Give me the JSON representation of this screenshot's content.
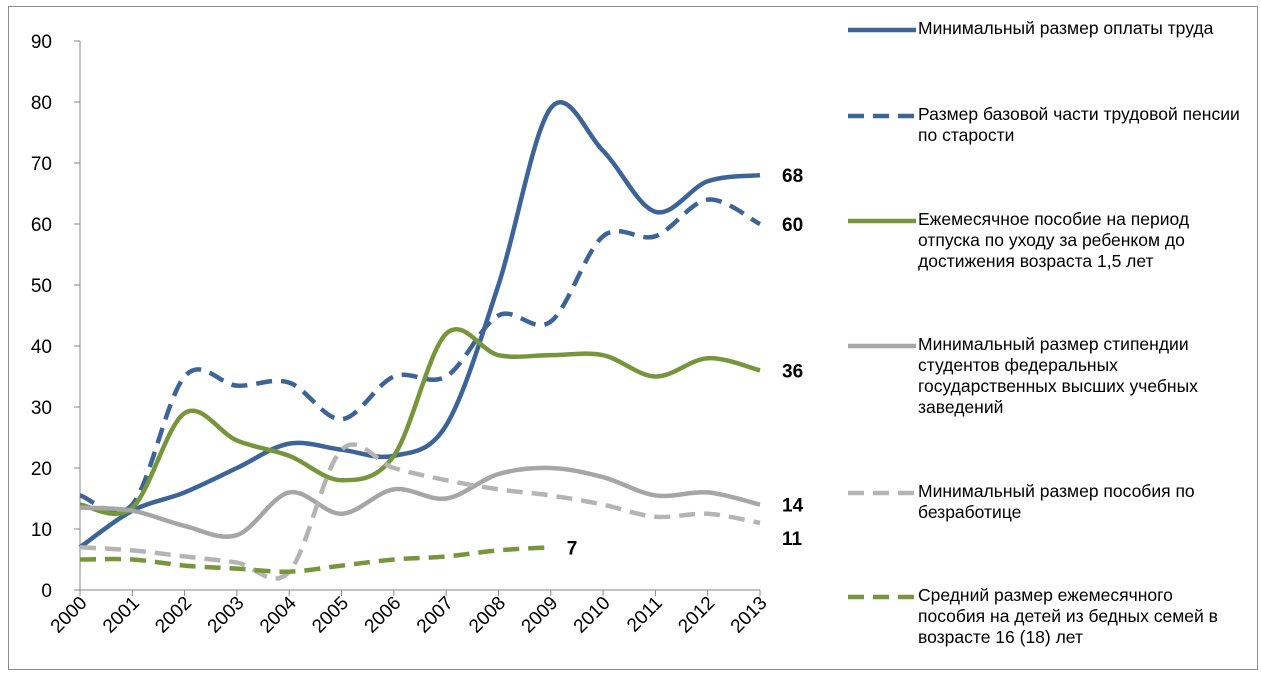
{
  "chart_data": {
    "type": "line",
    "categories": [
      "2000",
      "2001",
      "2002",
      "2003",
      "2004",
      "2005",
      "2006",
      "2007",
      "2008",
      "2009",
      "2010",
      "2011",
      "2012",
      "2013"
    ],
    "ylim": [
      0,
      90
    ],
    "yticks": [
      0,
      10,
      20,
      30,
      40,
      50,
      60,
      70,
      80,
      90
    ],
    "grid": false,
    "legend": "right",
    "smooth": true,
    "series": [
      {
        "name": "Минимальный размер оплаты труда",
        "color": "#3c6497",
        "dashed": false,
        "values": [
          7,
          13,
          16,
          20,
          24,
          23,
          22,
          27,
          50,
          79,
          72,
          62,
          67,
          68
        ]
      },
      {
        "name": "Размер базовой части трудовой пенсии по старости",
        "color": "#3c6497",
        "dashed": true,
        "values": [
          15.5,
          14,
          35,
          33.5,
          34,
          28,
          35,
          35,
          45,
          44,
          58,
          58,
          64,
          60
        ]
      },
      {
        "name": "Ежемесячное пособие на период отпуска по уходу за ребенком до достижения возраста 1,5 лет",
        "color": "#77963c",
        "dashed": false,
        "values": [
          14,
          13.5,
          29,
          24.5,
          22,
          18,
          22,
          42,
          38.5,
          38.5,
          38.5,
          35,
          38,
          36
        ]
      },
      {
        "name": "Минимальный размер стипендии студентов федеральных государственных высших учебных заведений",
        "color": "#a6a6a6",
        "dashed": false,
        "values": [
          13.5,
          13,
          10.5,
          9,
          16,
          12.5,
          16.5,
          15,
          19,
          20,
          18.5,
          15.5,
          16,
          14
        ]
      },
      {
        "name": "Минимальный размер пособия по безработице",
        "color": "#b4b4b4",
        "dashed": true,
        "values": [
          7,
          6.5,
          5.5,
          4.5,
          3,
          23,
          20,
          18,
          16.5,
          15.5,
          14,
          12,
          12.5,
          11
        ]
      },
      {
        "name": "Средний размер ежемесячного пособия на детей из бедных семей в возрасте 16 (18) лет",
        "color": "#77963c",
        "dashed": true,
        "values": [
          5,
          5,
          4,
          3.5,
          3,
          4,
          5,
          5.5,
          6.5,
          7,
          null,
          null,
          null,
          null
        ]
      }
    ]
  }
}
